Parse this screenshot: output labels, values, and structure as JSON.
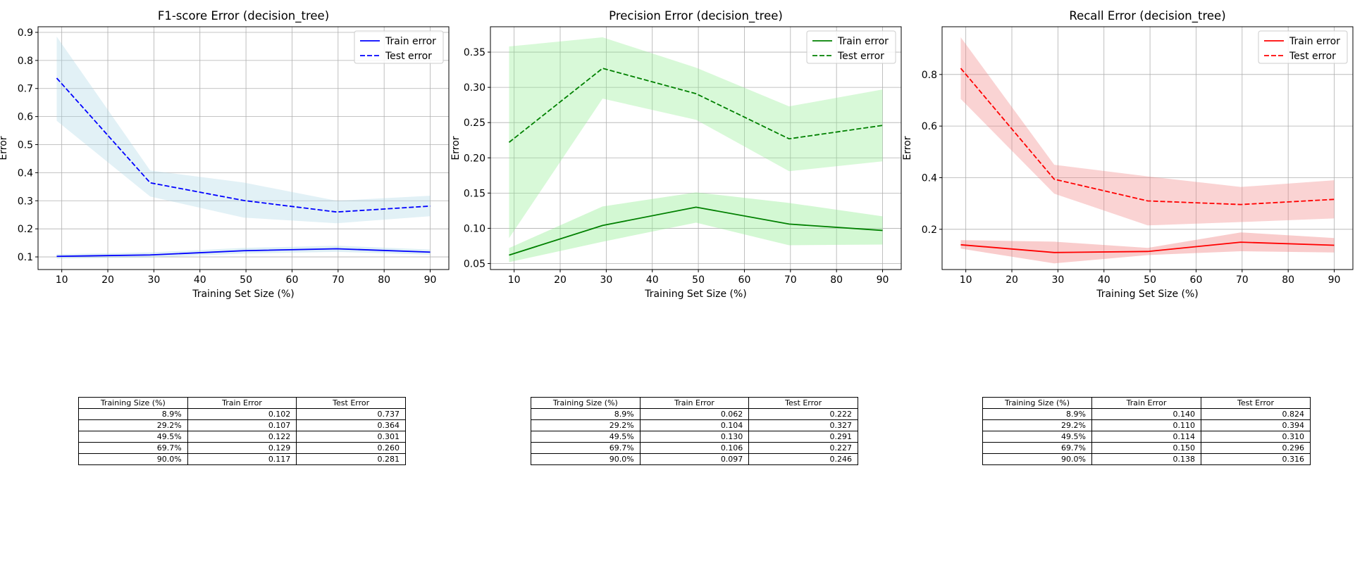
{
  "chart_data": [
    {
      "type": "line",
      "title": "F1-score Error (decision_tree)",
      "xlabel": "Training Set Size (%)",
      "ylabel": "Error",
      "x": [
        8.9,
        29.2,
        49.5,
        69.7,
        90.0
      ],
      "xlim": [
        4.85,
        94.05
      ],
      "ylim": [
        0.055,
        0.92
      ],
      "xticks": [
        10,
        20,
        30,
        40,
        50,
        60,
        70,
        80,
        90
      ],
      "yticks": [
        0.1,
        0.2,
        0.3,
        0.4,
        0.5,
        0.6,
        0.7,
        0.8,
        0.9
      ],
      "ytick_labels": [
        "0.1",
        "0.2",
        "0.3",
        "0.4",
        "0.5",
        "0.6",
        "0.7",
        "0.8",
        "0.9"
      ],
      "grid": true,
      "legend": "top-right",
      "color": "#0000ff",
      "band_color": "#add8e6",
      "series": [
        {
          "name": "Train error",
          "style": "solid",
          "values": [
            0.102,
            0.107,
            0.122,
            0.129,
            0.117
          ],
          "lower": [
            0.094,
            0.098,
            0.112,
            0.118,
            0.108
          ],
          "upper": [
            0.11,
            0.116,
            0.132,
            0.14,
            0.126
          ]
        },
        {
          "name": "Test error",
          "style": "dashed",
          "values": [
            0.737,
            0.364,
            0.301,
            0.26,
            0.281
          ],
          "lower": [
            0.585,
            0.315,
            0.24,
            0.22,
            0.245
          ],
          "upper": [
            0.885,
            0.408,
            0.365,
            0.3,
            0.318
          ]
        }
      ]
    },
    {
      "type": "line",
      "title": "Precision Error (decision_tree)",
      "xlabel": "Training Set Size (%)",
      "ylabel": "Error",
      "x": [
        8.9,
        29.2,
        49.5,
        69.7,
        90.0
      ],
      "xlim": [
        4.85,
        94.05
      ],
      "ylim": [
        0.0415,
        0.386
      ],
      "xticks": [
        10,
        20,
        30,
        40,
        50,
        60,
        70,
        80,
        90
      ],
      "yticks": [
        0.05,
        0.1,
        0.15,
        0.2,
        0.25,
        0.3,
        0.35
      ],
      "ytick_labels": [
        "0.05",
        "0.10",
        "0.15",
        "0.20",
        "0.25",
        "0.30",
        "0.35"
      ],
      "grid": true,
      "legend": "top-right",
      "color": "#008000",
      "band_color": "#90ee90",
      "series": [
        {
          "name": "Train error",
          "style": "solid",
          "values": [
            0.062,
            0.104,
            0.13,
            0.106,
            0.097
          ],
          "lower": [
            0.052,
            0.081,
            0.108,
            0.076,
            0.077
          ],
          "upper": [
            0.072,
            0.131,
            0.151,
            0.136,
            0.117
          ]
        },
        {
          "name": "Test error",
          "style": "dashed",
          "values": [
            0.222,
            0.327,
            0.291,
            0.227,
            0.246
          ],
          "lower": [
            0.086,
            0.284,
            0.254,
            0.181,
            0.195
          ],
          "upper": [
            0.358,
            0.371,
            0.328,
            0.273,
            0.297
          ]
        }
      ]
    },
    {
      "type": "line",
      "title": "Recall Error (decision_tree)",
      "xlabel": "Training Set Size (%)",
      "ylabel": "Error",
      "x": [
        8.9,
        29.2,
        49.5,
        69.7,
        90.0
      ],
      "xlim": [
        4.85,
        94.05
      ],
      "ylim": [
        0.044,
        0.985
      ],
      "xticks": [
        10,
        20,
        30,
        40,
        50,
        60,
        70,
        80,
        90
      ],
      "yticks": [
        0.2,
        0.4,
        0.6,
        0.8
      ],
      "ytick_labels": [
        "0.2",
        "0.4",
        "0.6",
        "0.8"
      ],
      "grid": true,
      "legend": "top-right",
      "color": "#ff0000",
      "band_color": "#f08080",
      "series": [
        {
          "name": "Train error",
          "style": "solid",
          "values": [
            0.14,
            0.11,
            0.114,
            0.15,
            0.138
          ],
          "lower": [
            0.125,
            0.068,
            0.1,
            0.115,
            0.11
          ],
          "upper": [
            0.158,
            0.152,
            0.128,
            0.188,
            0.166
          ]
        },
        {
          "name": "Test error",
          "style": "dashed",
          "values": [
            0.824,
            0.394,
            0.31,
            0.296,
            0.316
          ],
          "lower": [
            0.705,
            0.338,
            0.215,
            0.228,
            0.242
          ],
          "upper": [
            0.944,
            0.45,
            0.405,
            0.364,
            0.39
          ]
        }
      ]
    }
  ],
  "tables": [
    {
      "columns": [
        "Training Size (%)",
        "Train Error",
        "Test Error"
      ],
      "rows": [
        [
          "8.9%",
          "0.102",
          "0.737"
        ],
        [
          "29.2%",
          "0.107",
          "0.364"
        ],
        [
          "49.5%",
          "0.122",
          "0.301"
        ],
        [
          "69.7%",
          "0.129",
          "0.260"
        ],
        [
          "90.0%",
          "0.117",
          "0.281"
        ]
      ]
    },
    {
      "columns": [
        "Training Size (%)",
        "Train Error",
        "Test Error"
      ],
      "rows": [
        [
          "8.9%",
          "0.062",
          "0.222"
        ],
        [
          "29.2%",
          "0.104",
          "0.327"
        ],
        [
          "49.5%",
          "0.130",
          "0.291"
        ],
        [
          "69.7%",
          "0.106",
          "0.227"
        ],
        [
          "90.0%",
          "0.097",
          "0.246"
        ]
      ]
    },
    {
      "columns": [
        "Training Size (%)",
        "Train Error",
        "Test Error"
      ],
      "rows": [
        [
          "8.9%",
          "0.140",
          "0.824"
        ],
        [
          "29.2%",
          "0.110",
          "0.394"
        ],
        [
          "49.5%",
          "0.114",
          "0.310"
        ],
        [
          "69.7%",
          "0.150",
          "0.296"
        ],
        [
          "90.0%",
          "0.138",
          "0.316"
        ]
      ]
    }
  ]
}
